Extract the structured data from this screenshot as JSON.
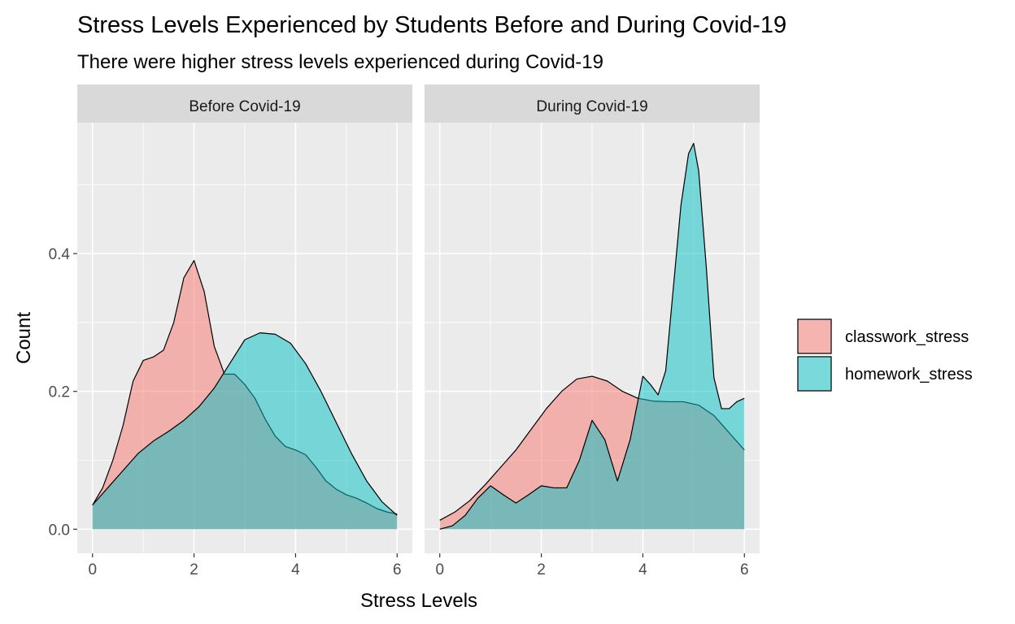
{
  "chart_data": {
    "type": "area",
    "title": "Stress Levels Experienced by Students Before and During Covid-19",
    "subtitle": "There were higher stress levels experienced during Covid-19",
    "xlabel": "Stress Levels",
    "ylabel": "Count",
    "xlim": [
      -0.3,
      6.3
    ],
    "ylim": [
      -0.035,
      0.59
    ],
    "x_ticks": [
      "0",
      "2",
      "4",
      "6"
    ],
    "y_ticks": [
      "0.0",
      "0.2",
      "0.4"
    ],
    "grid": true,
    "legend_position": "right",
    "series_colors": {
      "classwork_stress": "#F8766D",
      "homework_stress": "#00BFC4"
    },
    "legend": [
      "classwork_stress",
      "homework_stress"
    ],
    "facets": [
      {
        "label": "Before Covid-19",
        "series": [
          {
            "name": "classwork_stress",
            "x": [
              0,
              0.2,
              0.4,
              0.6,
              0.8,
              1.0,
              1.2,
              1.4,
              1.6,
              1.8,
              2.0,
              2.2,
              2.4,
              2.6,
              2.8,
              3.0,
              3.2,
              3.4,
              3.6,
              3.8,
              4.0,
              4.2,
              4.4,
              4.6,
              4.8,
              5.0,
              5.2,
              5.4,
              5.6,
              5.8,
              6.0
            ],
            "y": [
              0.035,
              0.06,
              0.1,
              0.15,
              0.215,
              0.245,
              0.25,
              0.26,
              0.3,
              0.365,
              0.39,
              0.345,
              0.265,
              0.225,
              0.225,
              0.21,
              0.19,
              0.16,
              0.135,
              0.12,
              0.115,
              0.108,
              0.09,
              0.07,
              0.058,
              0.05,
              0.045,
              0.038,
              0.03,
              0.025,
              0.022
            ]
          },
          {
            "name": "homework_stress",
            "x": [
              0,
              0.3,
              0.6,
              0.9,
              1.2,
              1.5,
              1.8,
              2.1,
              2.4,
              2.7,
              3.0,
              3.3,
              3.6,
              3.9,
              4.2,
              4.5,
              4.8,
              5.1,
              5.4,
              5.7,
              6.0
            ],
            "y": [
              0.035,
              0.06,
              0.085,
              0.11,
              0.128,
              0.142,
              0.158,
              0.178,
              0.205,
              0.24,
              0.275,
              0.285,
              0.283,
              0.27,
              0.24,
              0.2,
              0.155,
              0.11,
              0.07,
              0.04,
              0.02
            ]
          }
        ]
      },
      {
        "label": "During Covid-19",
        "series": [
          {
            "name": "classwork_stress",
            "x": [
              0,
              0.3,
              0.6,
              0.9,
              1.2,
              1.5,
              1.8,
              2.1,
              2.4,
              2.7,
              3.0,
              3.3,
              3.6,
              3.9,
              4.2,
              4.5,
              4.8,
              5.1,
              5.4,
              5.7,
              6.0
            ],
            "y": [
              0.013,
              0.025,
              0.042,
              0.065,
              0.09,
              0.115,
              0.145,
              0.175,
              0.2,
              0.218,
              0.222,
              0.215,
              0.2,
              0.19,
              0.186,
              0.185,
              0.185,
              0.18,
              0.165,
              0.14,
              0.115
            ]
          },
          {
            "name": "homework_stress",
            "x": [
              0,
              0.25,
              0.5,
              0.75,
              1.0,
              1.25,
              1.5,
              1.75,
              2.0,
              2.25,
              2.5,
              2.75,
              3.0,
              3.25,
              3.5,
              3.75,
              4.0,
              4.15,
              4.3,
              4.45,
              4.6,
              4.75,
              4.9,
              5.0,
              5.1,
              5.25,
              5.4,
              5.55,
              5.7,
              5.85,
              6.0
            ],
            "y": [
              0.0,
              0.005,
              0.02,
              0.045,
              0.063,
              0.05,
              0.038,
              0.05,
              0.063,
              0.06,
              0.06,
              0.1,
              0.158,
              0.13,
              0.07,
              0.13,
              0.222,
              0.21,
              0.195,
              0.23,
              0.35,
              0.47,
              0.545,
              0.56,
              0.52,
              0.38,
              0.22,
              0.175,
              0.175,
              0.185,
              0.19
            ]
          }
        ]
      }
    ]
  }
}
